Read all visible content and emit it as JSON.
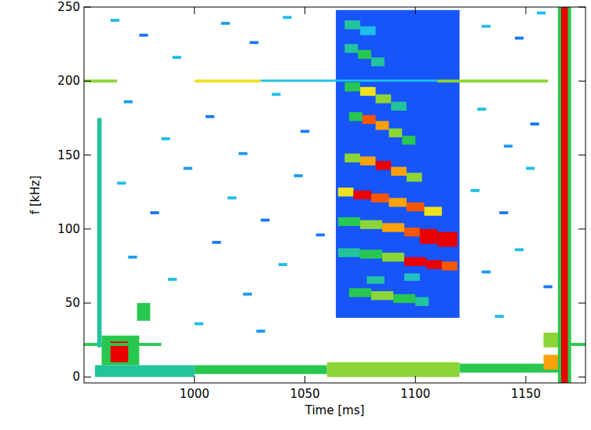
{
  "chart_data": {
    "type": "heatmap",
    "x_label": "Time [ms]",
    "y_label": "f [kHz]",
    "xlim": [
      950,
      1177
    ],
    "ylim": [
      -4,
      250
    ],
    "xticks": [
      1000,
      1050,
      1100,
      1150
    ],
    "yticks": [
      0,
      50,
      100,
      150,
      200,
      250
    ],
    "zlim": [
      0,
      1
    ],
    "cells": [
      [
        1064,
        1120,
        40,
        248,
        0.15
      ],
      [
        958,
        975,
        8,
        28,
        0.5
      ],
      [
        962,
        970,
        10,
        24,
        1
      ],
      [
        955,
        1000,
        0,
        8,
        0.4
      ],
      [
        1000,
        1060,
        2,
        8,
        0.5
      ],
      [
        1060,
        1120,
        0,
        10,
        0.6
      ],
      [
        1120,
        1165,
        3,
        9,
        0.5
      ],
      [
        1158,
        1166,
        5,
        15,
        0.8
      ],
      [
        1158,
        1165,
        20,
        30,
        0.6
      ],
      [
        950,
        985,
        21,
        23,
        0.5
      ],
      [
        1165,
        1177,
        21,
        23,
        0.5
      ],
      [
        974,
        980,
        38,
        50,
        0.5
      ],
      [
        956,
        958,
        20,
        175,
        0.4
      ],
      [
        950,
        965,
        199,
        201,
        0.6
      ],
      [
        1000,
        1030,
        199,
        201,
        0.7
      ],
      [
        1030,
        1110,
        199.5,
        201,
        0.3
      ],
      [
        1110,
        1160,
        199,
        201,
        0.6
      ],
      [
        1164.5,
        1170.5,
        -4,
        250,
        0.5
      ],
      [
        1166,
        1169,
        -4,
        250,
        1
      ],
      [
        1070,
        1080,
        54,
        60,
        0.5
      ],
      [
        1080,
        1090,
        52,
        58,
        0.6
      ],
      [
        1090,
        1100,
        50,
        56,
        0.5
      ],
      [
        1100,
        1106,
        48,
        54,
        0.4
      ],
      [
        1065,
        1075,
        81,
        87,
        0.4
      ],
      [
        1075,
        1085,
        80,
        86,
        0.5
      ],
      [
        1085,
        1095,
        78,
        84,
        0.6
      ],
      [
        1095,
        1105,
        75,
        81,
        1
      ],
      [
        1105,
        1112,
        73,
        79,
        1
      ],
      [
        1112,
        1119,
        72,
        78,
        0.9
      ],
      [
        1065,
        1075,
        102,
        108,
        0.5
      ],
      [
        1075,
        1085,
        100,
        106,
        0.6
      ],
      [
        1085,
        1095,
        98,
        104,
        0.8
      ],
      [
        1095,
        1102,
        95,
        101,
        0.9
      ],
      [
        1102,
        1110,
        90,
        100,
        1
      ],
      [
        1110,
        1119,
        88,
        98,
        1
      ],
      [
        1065,
        1072,
        122,
        128,
        0.7
      ],
      [
        1072,
        1080,
        120,
        126,
        1
      ],
      [
        1080,
        1088,
        118,
        124,
        0.9
      ],
      [
        1088,
        1096,
        115,
        121,
        0.8
      ],
      [
        1096,
        1104,
        112,
        118,
        0.9
      ],
      [
        1104,
        1112,
        109,
        115,
        0.7
      ],
      [
        1068,
        1075,
        145,
        151,
        0.6
      ],
      [
        1075,
        1082,
        143,
        149,
        0.8
      ],
      [
        1082,
        1089,
        140,
        146,
        1
      ],
      [
        1089,
        1096,
        136,
        142,
        0.8
      ],
      [
        1096,
        1103,
        132,
        138,
        0.6
      ],
      [
        1070,
        1076,
        173,
        179,
        0.5
      ],
      [
        1076,
        1082,
        171,
        177,
        0.9
      ],
      [
        1082,
        1088,
        167,
        173,
        0.8
      ],
      [
        1088,
        1094,
        162,
        168,
        0.6
      ],
      [
        1094,
        1100,
        157,
        163,
        0.5
      ],
      [
        1068,
        1075,
        193,
        199,
        0.5
      ],
      [
        1075,
        1082,
        190,
        196,
        0.7
      ],
      [
        1082,
        1089,
        185,
        191,
        0.6
      ],
      [
        1089,
        1096,
        180,
        186,
        0.4
      ],
      [
        1068,
        1074,
        219,
        225,
        0.4
      ],
      [
        1074,
        1080,
        215,
        221,
        0.5
      ],
      [
        1080,
        1086,
        210,
        216,
        0.4
      ],
      [
        1068,
        1075,
        235,
        241,
        0.4
      ],
      [
        1075,
        1082,
        231,
        237,
        0.3
      ],
      [
        1078,
        1086,
        63,
        68,
        0.4
      ],
      [
        1095,
        1102,
        65,
        70,
        0.35
      ],
      [
        962,
        966,
        240,
        242,
        0.3
      ],
      [
        975,
        979,
        230,
        232,
        0.2
      ],
      [
        990,
        994,
        215,
        217,
        0.3
      ],
      [
        1012,
        1016,
        238,
        240,
        0.25
      ],
      [
        1025,
        1029,
        225,
        227,
        0.2
      ],
      [
        1040,
        1044,
        242,
        244,
        0.3
      ],
      [
        1130,
        1134,
        236,
        238,
        0.3
      ],
      [
        1145,
        1149,
        228,
        230,
        0.2
      ],
      [
        1155,
        1159,
        245,
        247,
        0.3
      ],
      [
        968,
        972,
        185,
        187,
        0.25
      ],
      [
        985,
        989,
        160,
        162,
        0.3
      ],
      [
        1005,
        1009,
        175,
        177,
        0.2
      ],
      [
        1020,
        1024,
        150,
        152,
        0.25
      ],
      [
        1035,
        1039,
        190,
        192,
        0.3
      ],
      [
        1048,
        1052,
        165,
        167,
        0.2
      ],
      [
        1128,
        1132,
        180,
        182,
        0.3
      ],
      [
        1140,
        1144,
        155,
        157,
        0.25
      ],
      [
        1152,
        1156,
        170,
        172,
        0.2
      ],
      [
        965,
        969,
        130,
        132,
        0.3
      ],
      [
        980,
        984,
        110,
        112,
        0.2
      ],
      [
        995,
        999,
        140,
        142,
        0.25
      ],
      [
        1015,
        1019,
        120,
        122,
        0.3
      ],
      [
        1030,
        1034,
        105,
        107,
        0.2
      ],
      [
        1045,
        1049,
        135,
        137,
        0.25
      ],
      [
        1125,
        1129,
        125,
        127,
        0.3
      ],
      [
        1138,
        1142,
        110,
        112,
        0.2
      ],
      [
        1150,
        1154,
        140,
        142,
        0.3
      ],
      [
        970,
        974,
        80,
        82,
        0.25
      ],
      [
        988,
        992,
        65,
        67,
        0.3
      ],
      [
        1008,
        1012,
        90,
        92,
        0.2
      ],
      [
        1022,
        1026,
        55,
        57,
        0.25
      ],
      [
        1038,
        1042,
        75,
        77,
        0.3
      ],
      [
        1055,
        1059,
        95,
        97,
        0.2
      ],
      [
        1130,
        1134,
        70,
        72,
        0.25
      ],
      [
        1145,
        1149,
        85,
        87,
        0.3
      ],
      [
        1158,
        1162,
        60,
        62,
        0.2
      ],
      [
        1000,
        1004,
        35,
        37,
        0.3
      ],
      [
        1028,
        1032,
        30,
        32,
        0.25
      ],
      [
        1136,
        1140,
        40,
        42,
        0.3
      ]
    ]
  }
}
